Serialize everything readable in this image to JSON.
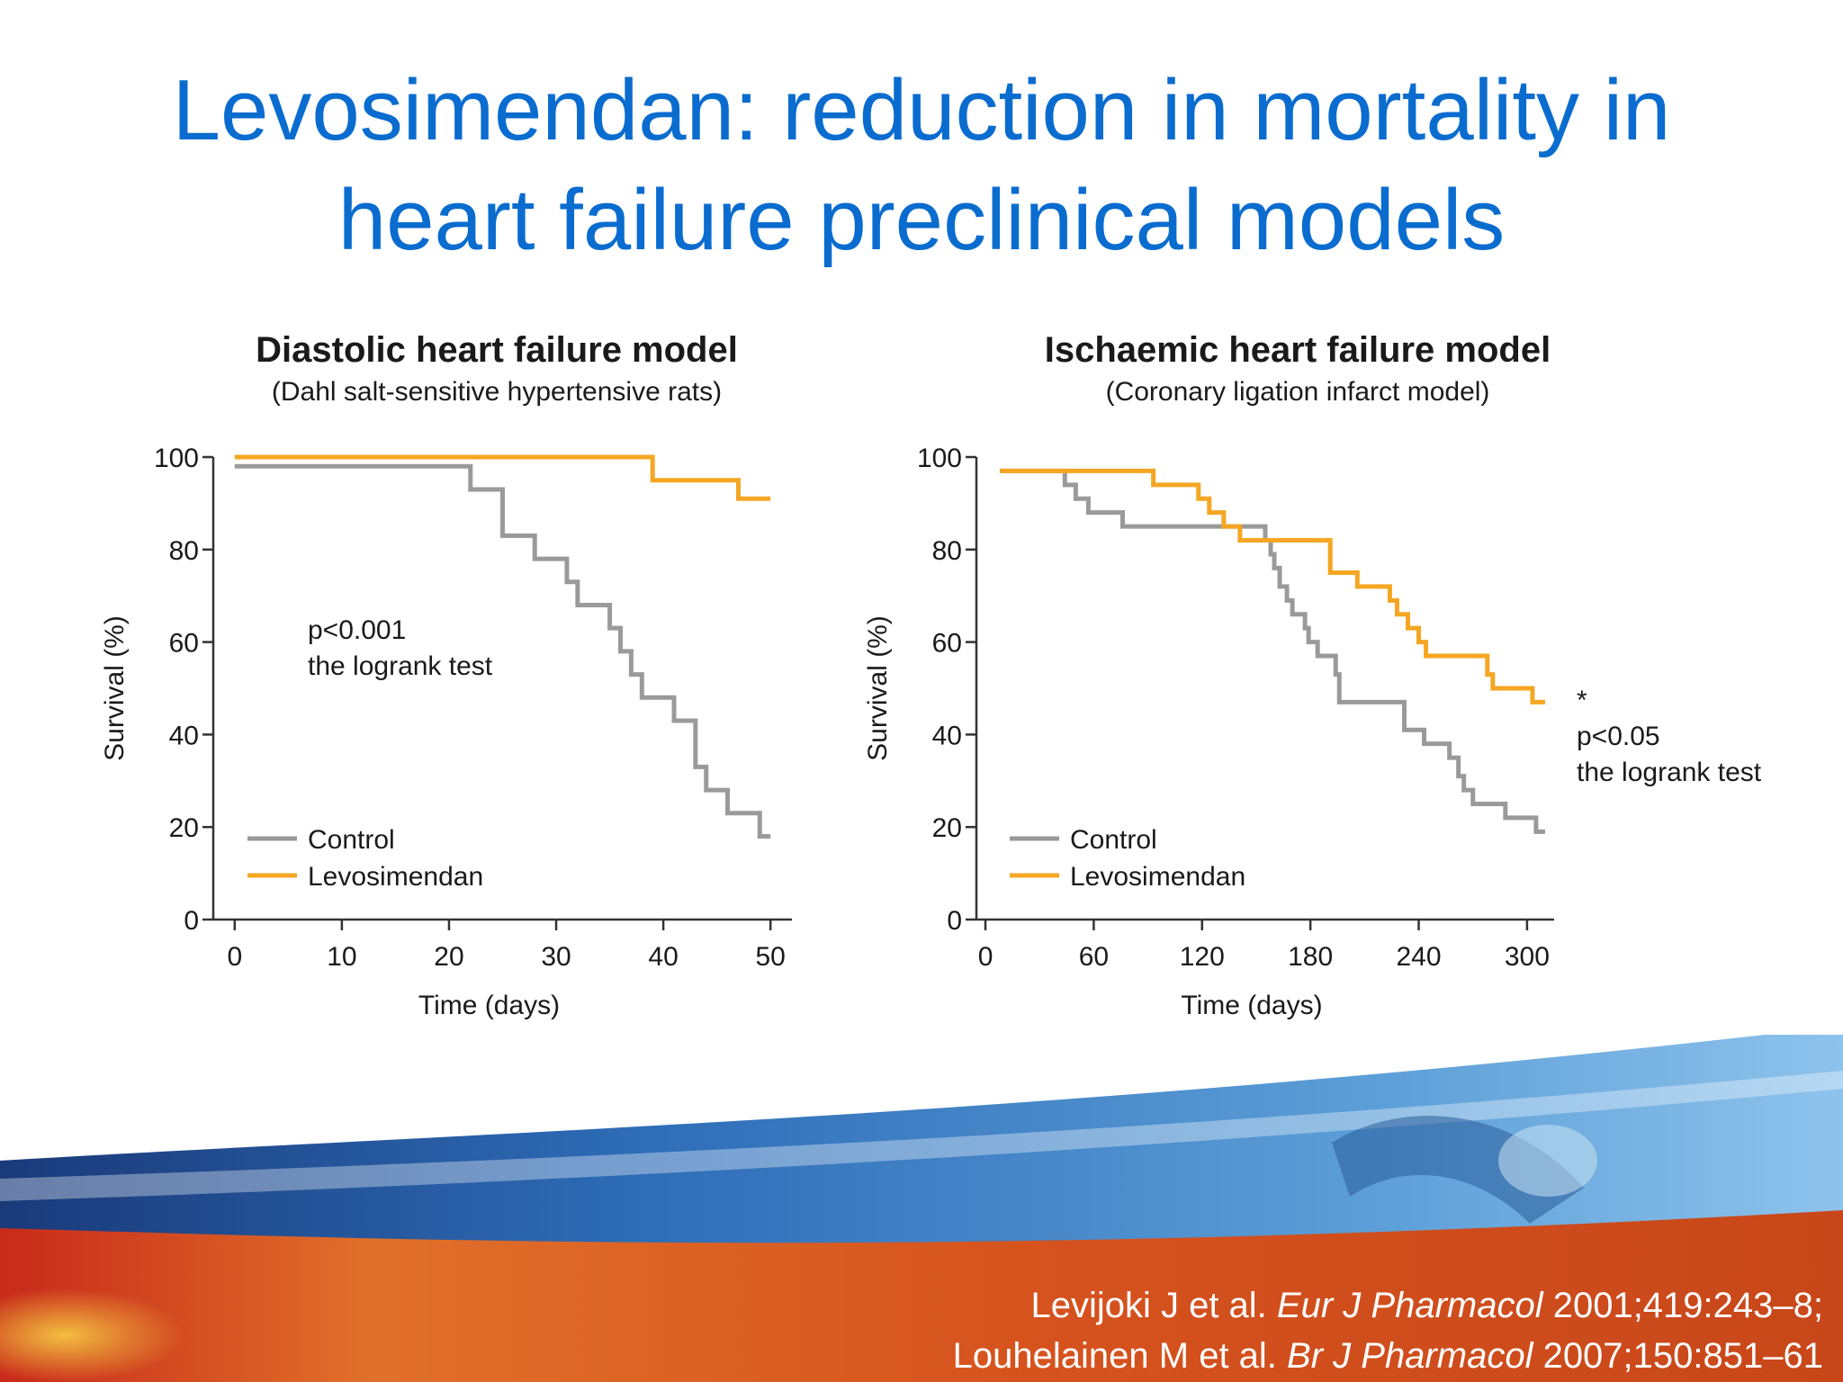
{
  "slide": {
    "title_line1": "Levosimendan: reduction in mortality in",
    "title_line2": "heart failure preclinical models"
  },
  "colors": {
    "title": "#0a6ccf",
    "control": "#9a9a9a",
    "levosimendan": "#f5a623",
    "axis": "#333333"
  },
  "citation": {
    "line1_pre": "Levijoki J et al. ",
    "line1_journal": "Eur J Pharmacol",
    "line1_post": " 2001;419:243–8;",
    "line2_pre": "Louhelainen M et al. ",
    "line2_journal": "Br J Pharmacol",
    "line2_post": " 2007;150:851–61"
  },
  "chart_data": [
    {
      "type": "line",
      "step": true,
      "title": "Diastolic heart failure model",
      "subtitle": "(Dahl salt-sensitive hypertensive rats)",
      "xlabel": "Time (days)",
      "ylabel": "Survival (%)",
      "xlim": [
        -2,
        52
      ],
      "ylim": [
        0,
        100
      ],
      "xticks": [
        0,
        10,
        20,
        30,
        40,
        50
      ],
      "yticks": [
        0,
        20,
        40,
        60,
        80,
        100
      ],
      "annotation": [
        "p<0.001",
        "the logrank test"
      ],
      "legend": [
        "Control",
        "Levosimendan"
      ],
      "series": [
        {
          "name": "Control",
          "x": [
            0,
            22,
            25,
            28,
            31,
            32,
            35,
            36,
            37,
            38,
            41,
            43,
            44,
            46,
            49,
            50
          ],
          "y": [
            98,
            93,
            83,
            78,
            73,
            68,
            63,
            58,
            53,
            48,
            43,
            33,
            28,
            23,
            18,
            18
          ]
        },
        {
          "name": "Levosimendan",
          "x": [
            0,
            39,
            47,
            50
          ],
          "y": [
            100,
            95,
            91,
            91
          ]
        }
      ]
    },
    {
      "type": "line",
      "step": true,
      "title": "Ischaemic heart failure model",
      "subtitle": "(Coronary ligation infarct model)",
      "xlabel": "Time (days)",
      "ylabel": "Survival (%)",
      "xlim": [
        -5,
        315
      ],
      "ylim": [
        0,
        100
      ],
      "xticks": [
        0,
        60,
        120,
        180,
        240,
        300
      ],
      "yticks": [
        0,
        20,
        40,
        60,
        80,
        100
      ],
      "annotation": [
        "*",
        "p<0.05",
        "the logrank test"
      ],
      "legend": [
        "Control",
        "Levosimendan"
      ],
      "series": [
        {
          "name": "Control",
          "x": [
            8,
            44,
            50,
            57,
            76,
            103,
            155,
            158,
            160,
            163,
            167,
            170,
            177,
            179,
            184,
            194,
            196,
            232,
            243,
            257,
            262,
            265,
            270,
            288,
            305,
            310
          ],
          "y": [
            97,
            94,
            91,
            88,
            85,
            85,
            82,
            79,
            76,
            72,
            69,
            66,
            63,
            60,
            57,
            53,
            47,
            41,
            38,
            35,
            31,
            28,
            25,
            22,
            19,
            19
          ]
        },
        {
          "name": "Levosimendan",
          "x": [
            8,
            93,
            118,
            124,
            132,
            141,
            152,
            174,
            191,
            206,
            224,
            228,
            234,
            240,
            244,
            247,
            278,
            281,
            303,
            310
          ],
          "y": [
            97,
            94,
            91,
            88,
            85,
            82,
            82,
            82,
            75,
            72,
            69,
            66,
            63,
            60,
            57,
            57,
            53,
            50,
            47,
            47
          ]
        }
      ]
    }
  ]
}
